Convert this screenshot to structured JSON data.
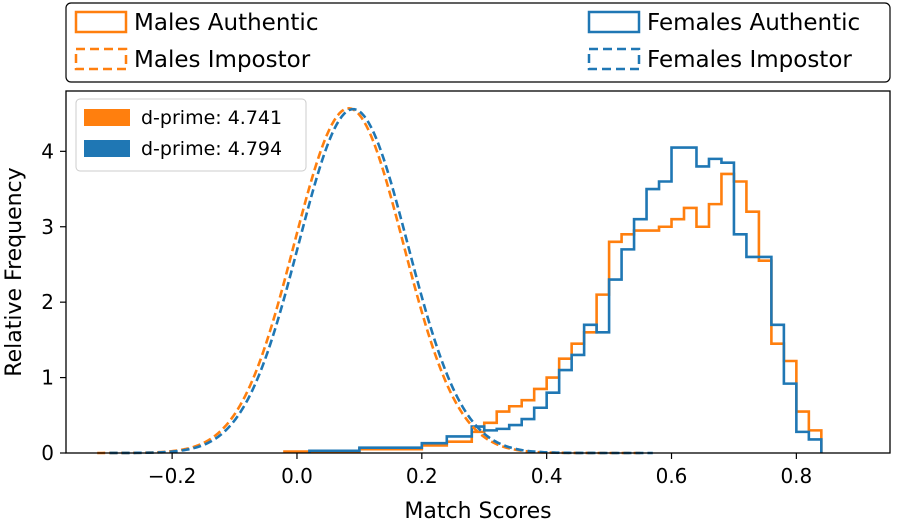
{
  "chart_data": {
    "type": "histogram",
    "title": "",
    "xlabel": "Match Scores",
    "ylabel": "Relative Frequency",
    "xlim": [
      -0.37,
      0.95
    ],
    "ylim": [
      0,
      4.8
    ],
    "xticks": [
      -0.2,
      0.0,
      0.2,
      0.4,
      0.6,
      0.8
    ],
    "xtick_labels": [
      "−0.2",
      "0.0",
      "0.2",
      "0.4",
      "0.6",
      "0.8"
    ],
    "yticks": [
      0,
      1,
      2,
      3,
      4
    ],
    "ytick_labels": [
      "0",
      "1",
      "2",
      "3",
      "4"
    ],
    "colors": {
      "males": "#ff7f0e",
      "females": "#1f77b4"
    },
    "legend_top": {
      "placement": "above-plot",
      "entries": [
        {
          "label": "Males Authentic",
          "series": "males_authentic"
        },
        {
          "label": "Males Impostor",
          "series": "males_impostor"
        },
        {
          "label": "Females Authentic",
          "series": "females_authentic"
        },
        {
          "label": "Females Impostor",
          "series": "females_impostor"
        }
      ]
    },
    "legend_inner": {
      "placement": "top-left",
      "entries": [
        {
          "label": "d-prime: 4.741",
          "color": "#ff7f0e"
        },
        {
          "label": "d-prime: 4.794",
          "color": "#1f77b4"
        }
      ]
    },
    "series": [
      {
        "name": "Males Impostor",
        "key": "males_impostor",
        "group": "males",
        "style": "dashed",
        "kind": "gaussian",
        "mean": 0.083,
        "std": 0.0875,
        "peak": 4.57,
        "range": [
          -0.32,
          0.55
        ]
      },
      {
        "name": "Females Impostor",
        "key": "females_impostor",
        "group": "females",
        "style": "dashed",
        "kind": "gaussian",
        "mean": 0.09,
        "std": 0.0875,
        "peak": 4.56,
        "range": [
          -0.3,
          0.57
        ]
      },
      {
        "name": "Males Authentic",
        "key": "males_authentic",
        "group": "males",
        "style": "solid",
        "kind": "step",
        "bin_edges": [
          -0.02,
          0.1,
          0.2,
          0.24,
          0.28,
          0.3,
          0.32,
          0.34,
          0.36,
          0.38,
          0.4,
          0.42,
          0.44,
          0.46,
          0.48,
          0.5,
          0.52,
          0.54,
          0.56,
          0.58,
          0.6,
          0.62,
          0.64,
          0.66,
          0.68,
          0.7,
          0.72,
          0.74,
          0.76,
          0.78,
          0.8,
          0.82,
          0.84
        ],
        "values": [
          0.02,
          0.05,
          0.1,
          0.15,
          0.28,
          0.4,
          0.55,
          0.62,
          0.7,
          0.85,
          1.0,
          1.25,
          1.45,
          1.6,
          2.1,
          2.8,
          2.9,
          2.95,
          2.95,
          3.0,
          3.1,
          3.25,
          3.0,
          3.3,
          3.7,
          3.6,
          3.2,
          2.55,
          1.45,
          1.22,
          0.55,
          0.3
        ]
      },
      {
        "name": "Females Authentic",
        "key": "females_authentic",
        "group": "females",
        "style": "solid",
        "kind": "step",
        "bin_edges": [
          0.02,
          0.1,
          0.2,
          0.24,
          0.28,
          0.3,
          0.32,
          0.34,
          0.36,
          0.38,
          0.4,
          0.42,
          0.44,
          0.46,
          0.48,
          0.5,
          0.52,
          0.54,
          0.56,
          0.58,
          0.6,
          0.62,
          0.64,
          0.66,
          0.68,
          0.7,
          0.72,
          0.74,
          0.76,
          0.78,
          0.8,
          0.82,
          0.84
        ],
        "values": [
          0.03,
          0.07,
          0.13,
          0.22,
          0.35,
          0.3,
          0.32,
          0.37,
          0.45,
          0.6,
          0.8,
          1.1,
          1.3,
          1.7,
          1.6,
          2.3,
          2.7,
          3.1,
          3.5,
          3.6,
          4.05,
          4.05,
          3.8,
          3.9,
          3.85,
          2.9,
          2.6,
          2.6,
          1.7,
          0.92,
          0.28,
          0.18
        ]
      }
    ]
  }
}
